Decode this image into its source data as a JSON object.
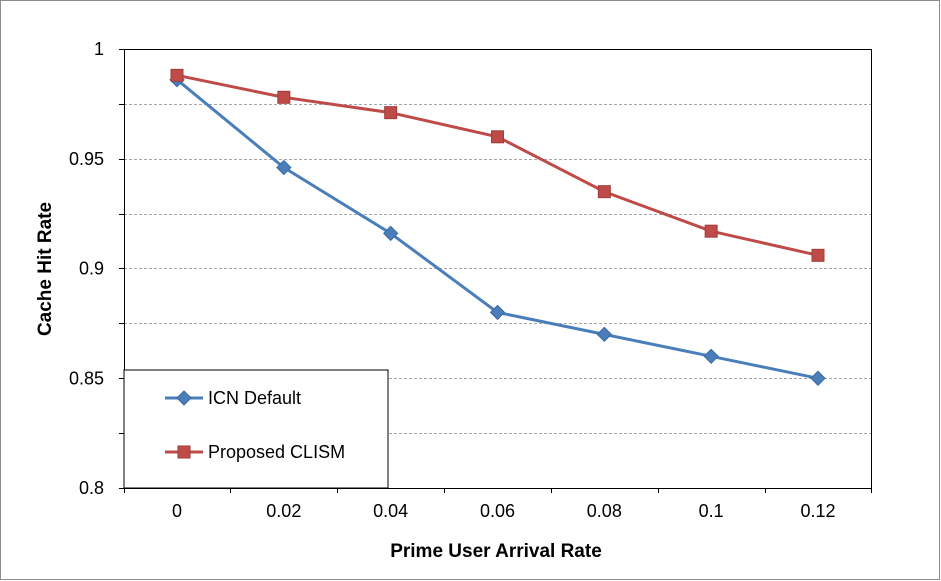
{
  "chart_data": {
    "type": "line",
    "title": "",
    "xlabel": "Prime User Arrival Rate",
    "ylabel": "Cache Hit Rate",
    "x": [
      0,
      0.02,
      0.04,
      0.06,
      0.08,
      0.1,
      0.12
    ],
    "x_tick_labels": [
      "0",
      "0.02",
      "0.04",
      "0.06",
      "0.08",
      "0.1",
      "0.12"
    ],
    "y_ticks": [
      0.8,
      0.85,
      0.9,
      0.95,
      1
    ],
    "y_tick_labels": [
      "0.8",
      "0.85",
      "0.9",
      "0.95",
      "1"
    ],
    "ylim": [
      0.8,
      1
    ],
    "grid": "horizontal dashed at 0.025 intervals",
    "legend_position": "bottom-left",
    "series": [
      {
        "name": "ICN Default",
        "color": "#4a7ebb",
        "marker": "diamond",
        "values": [
          0.986,
          0.946,
          0.916,
          0.88,
          0.87,
          0.86,
          0.85
        ]
      },
      {
        "name": "Proposed CLISM",
        "color": "#be4b48",
        "marker": "square",
        "values": [
          0.988,
          0.978,
          0.971,
          0.96,
          0.935,
          0.917,
          0.906
        ]
      }
    ]
  }
}
